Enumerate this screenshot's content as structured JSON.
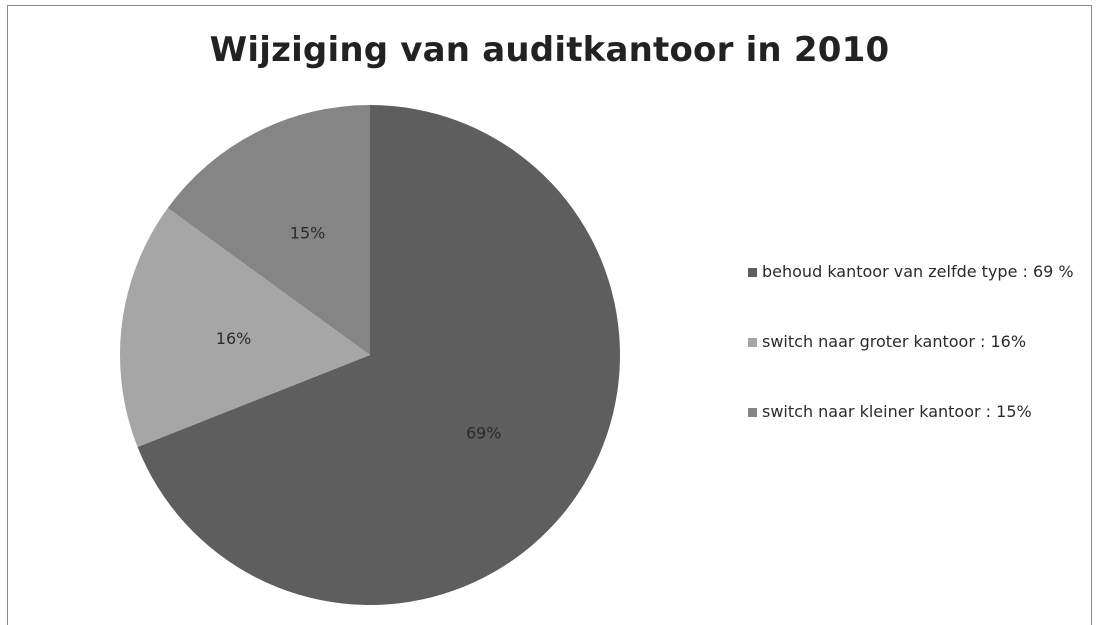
{
  "chart_data": {
    "type": "pie",
    "title": "Wijziging van auditkantoor in 2010",
    "slices": [
      {
        "label": "behoud kantoor van zelfde type : 69 %",
        "value": 69,
        "data_label": "69%",
        "color": "#5e5e5e"
      },
      {
        "label": "switch naar groter kantoor : 16%",
        "value": 16,
        "data_label": "16%",
        "color": "#a6a6a6"
      },
      {
        "label": "switch naar kleiner kantoor : 15%",
        "value": 15,
        "data_label": "15%",
        "color": "#858585"
      }
    ],
    "legend_position": "right"
  }
}
